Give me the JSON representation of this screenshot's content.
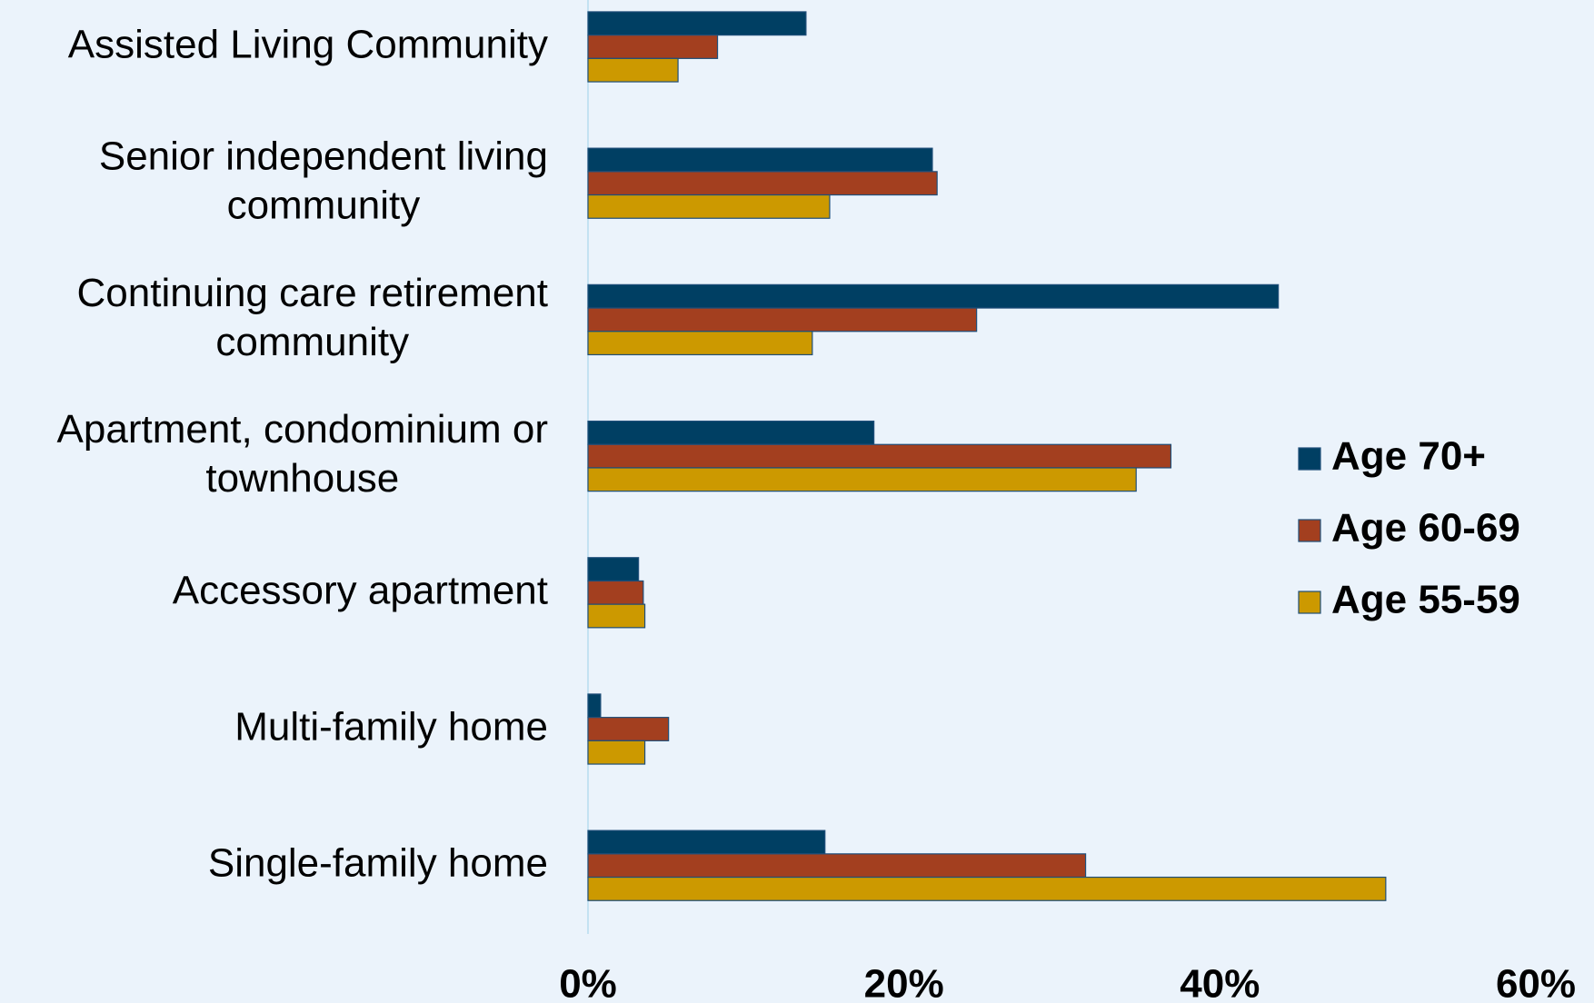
{
  "chart_data": {
    "type": "hbar",
    "categories": [
      "Assisted Living Community",
      "Senior independent living\ncommunity",
      "Continuing care retirement\ncommunity",
      "Apartment, condominium or\ntownhouse",
      "Accessory apartment",
      "Multi-family home",
      "Single-family home"
    ],
    "series": [
      {
        "name": "Age 70+",
        "color": "#003f63",
        "values": [
          13.8,
          21.8,
          43.7,
          18.1,
          3.2,
          0.8,
          15
        ]
      },
      {
        "name": "Age 60-69",
        "color": "#a33f1f",
        "values": [
          8.2,
          22.1,
          24.6,
          36.9,
          3.5,
          5.1,
          31.5
        ]
      },
      {
        "name": "Age 55-59",
        "color": "#cc9900",
        "values": [
          5.7,
          15.3,
          14.2,
          34.7,
          3.6,
          3.6,
          50.5
        ]
      }
    ],
    "xlim": [
      0,
      60
    ],
    "xticks": [
      {
        "value": 0,
        "label": "0%"
      },
      {
        "value": 20,
        "label": "20%"
      },
      {
        "value": 40,
        "label": "40%"
      },
      {
        "value": 60,
        "label": "60%"
      }
    ],
    "legend": "right"
  }
}
